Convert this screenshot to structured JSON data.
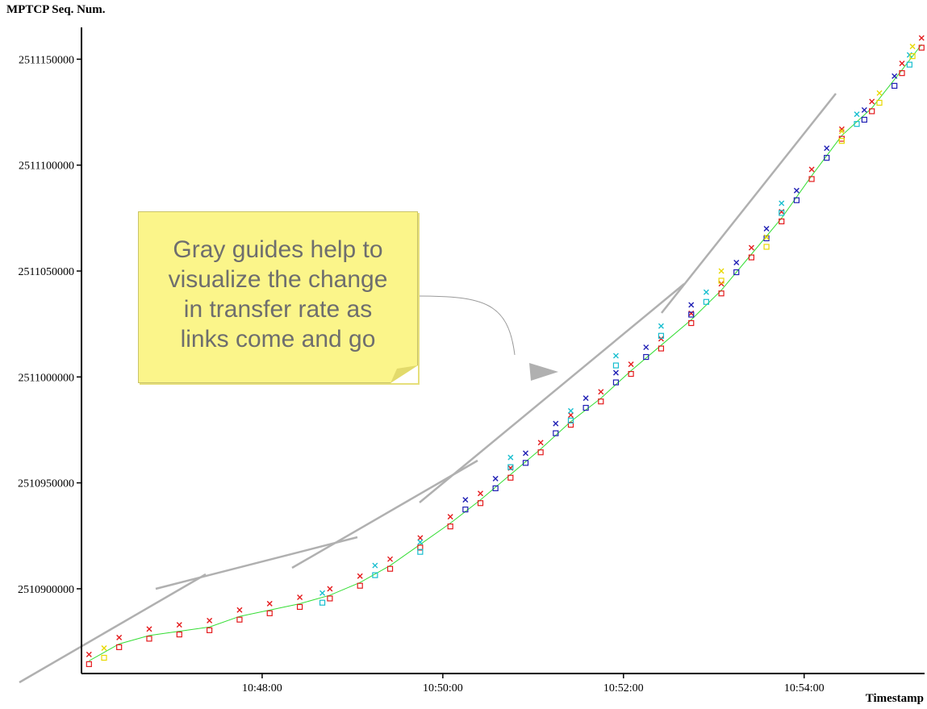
{
  "chart_data": {
    "type": "scatter",
    "title": "",
    "ylabel": "MPTCP Seq. Num.",
    "xlabel": "Timestamp",
    "x_ticks": [
      "10:48:00",
      "10:50:00",
      "10:52:00",
      "10:54:00"
    ],
    "y_ticks": [
      "2510900000",
      "2510950000",
      "2511000000",
      "2511050000",
      "2511100000",
      "2511150000"
    ],
    "ylim": [
      2510860000,
      2511165000
    ],
    "xlim": [
      "10:46:00",
      "10:55:20"
    ],
    "series": [
      {
        "name": "",
        "color": "#e41a1c",
        "marker": "x",
        "points": [
          [
            "10:46:05",
            2510869000
          ],
          [
            "10:46:25",
            2510877000
          ],
          [
            "10:46:45",
            2510881000
          ],
          [
            "10:47:05",
            2510883000
          ],
          [
            "10:47:25",
            2510885000
          ],
          [
            "10:47:45",
            2510890000
          ],
          [
            "10:48:05",
            2510893000
          ],
          [
            "10:48:25",
            2510896000
          ],
          [
            "10:48:45",
            2510900000
          ],
          [
            "10:49:05",
            2510906000
          ],
          [
            "10:49:25",
            2510914000
          ],
          [
            "10:49:45",
            2510924000
          ],
          [
            "10:50:05",
            2510934000
          ],
          [
            "10:50:25",
            2510945000
          ],
          [
            "10:50:45",
            2510957000
          ],
          [
            "10:51:05",
            2510969000
          ],
          [
            "10:51:25",
            2510982000
          ],
          [
            "10:51:45",
            2510993000
          ],
          [
            "10:52:05",
            2511006000
          ],
          [
            "10:52:25",
            2511018000
          ],
          [
            "10:52:45",
            2511030000
          ],
          [
            "10:53:05",
            2511044000
          ],
          [
            "10:53:25",
            2511061000
          ],
          [
            "10:53:45",
            2511078000
          ],
          [
            "10:54:05",
            2511098000
          ],
          [
            "10:54:25",
            2511117000
          ],
          [
            "10:54:45",
            2511130000
          ],
          [
            "10:55:05",
            2511148000
          ],
          [
            "10:55:18",
            2511160000
          ]
        ]
      },
      {
        "name": "",
        "color": "#1f1fb4",
        "marker": "x",
        "points": [
          [
            "10:50:15",
            2510942000
          ],
          [
            "10:50:35",
            2510952000
          ],
          [
            "10:50:55",
            2510964000
          ],
          [
            "10:51:15",
            2510978000
          ],
          [
            "10:51:35",
            2510990000
          ],
          [
            "10:51:55",
            2511002000
          ],
          [
            "10:52:15",
            2511014000
          ],
          [
            "10:52:45",
            2511034000
          ],
          [
            "10:53:15",
            2511054000
          ],
          [
            "10:53:35",
            2511070000
          ],
          [
            "10:53:55",
            2511088000
          ],
          [
            "10:54:15",
            2511108000
          ],
          [
            "10:54:40",
            2511126000
          ],
          [
            "10:55:00",
            2511142000
          ]
        ]
      },
      {
        "name": "",
        "color": "#17becf",
        "marker": "x",
        "points": [
          [
            "10:48:40",
            2510898000
          ],
          [
            "10:49:15",
            2510911000
          ],
          [
            "10:49:45",
            2510922000
          ],
          [
            "10:50:45",
            2510962000
          ],
          [
            "10:51:25",
            2510984000
          ],
          [
            "10:51:55",
            2511010000
          ],
          [
            "10:52:25",
            2511024000
          ],
          [
            "10:52:55",
            2511040000
          ],
          [
            "10:53:45",
            2511082000
          ],
          [
            "10:54:35",
            2511124000
          ],
          [
            "10:55:10",
            2511152000
          ]
        ]
      },
      {
        "name": "",
        "color": "#e8d800",
        "marker": "x",
        "points": [
          [
            "10:46:15",
            2510872000
          ],
          [
            "10:53:05",
            2511050000
          ],
          [
            "10:53:35",
            2511066000
          ],
          [
            "10:54:25",
            2511116000
          ],
          [
            "10:54:50",
            2511134000
          ],
          [
            "10:55:12",
            2511156000
          ]
        ]
      }
    ]
  },
  "annotation": {
    "text": "Gray guides help to visualize the change in transfer rate as links come and go",
    "lines": [
      "Gray guides help to",
      "visualize the change",
      "in transfer rate as",
      "links come and go"
    ],
    "background": "#fbf58a",
    "text_color": "#6e6e6e"
  },
  "colors": {
    "guide": "#b0b0b0",
    "axis": "#000000",
    "ack_line": "#33dd33"
  }
}
